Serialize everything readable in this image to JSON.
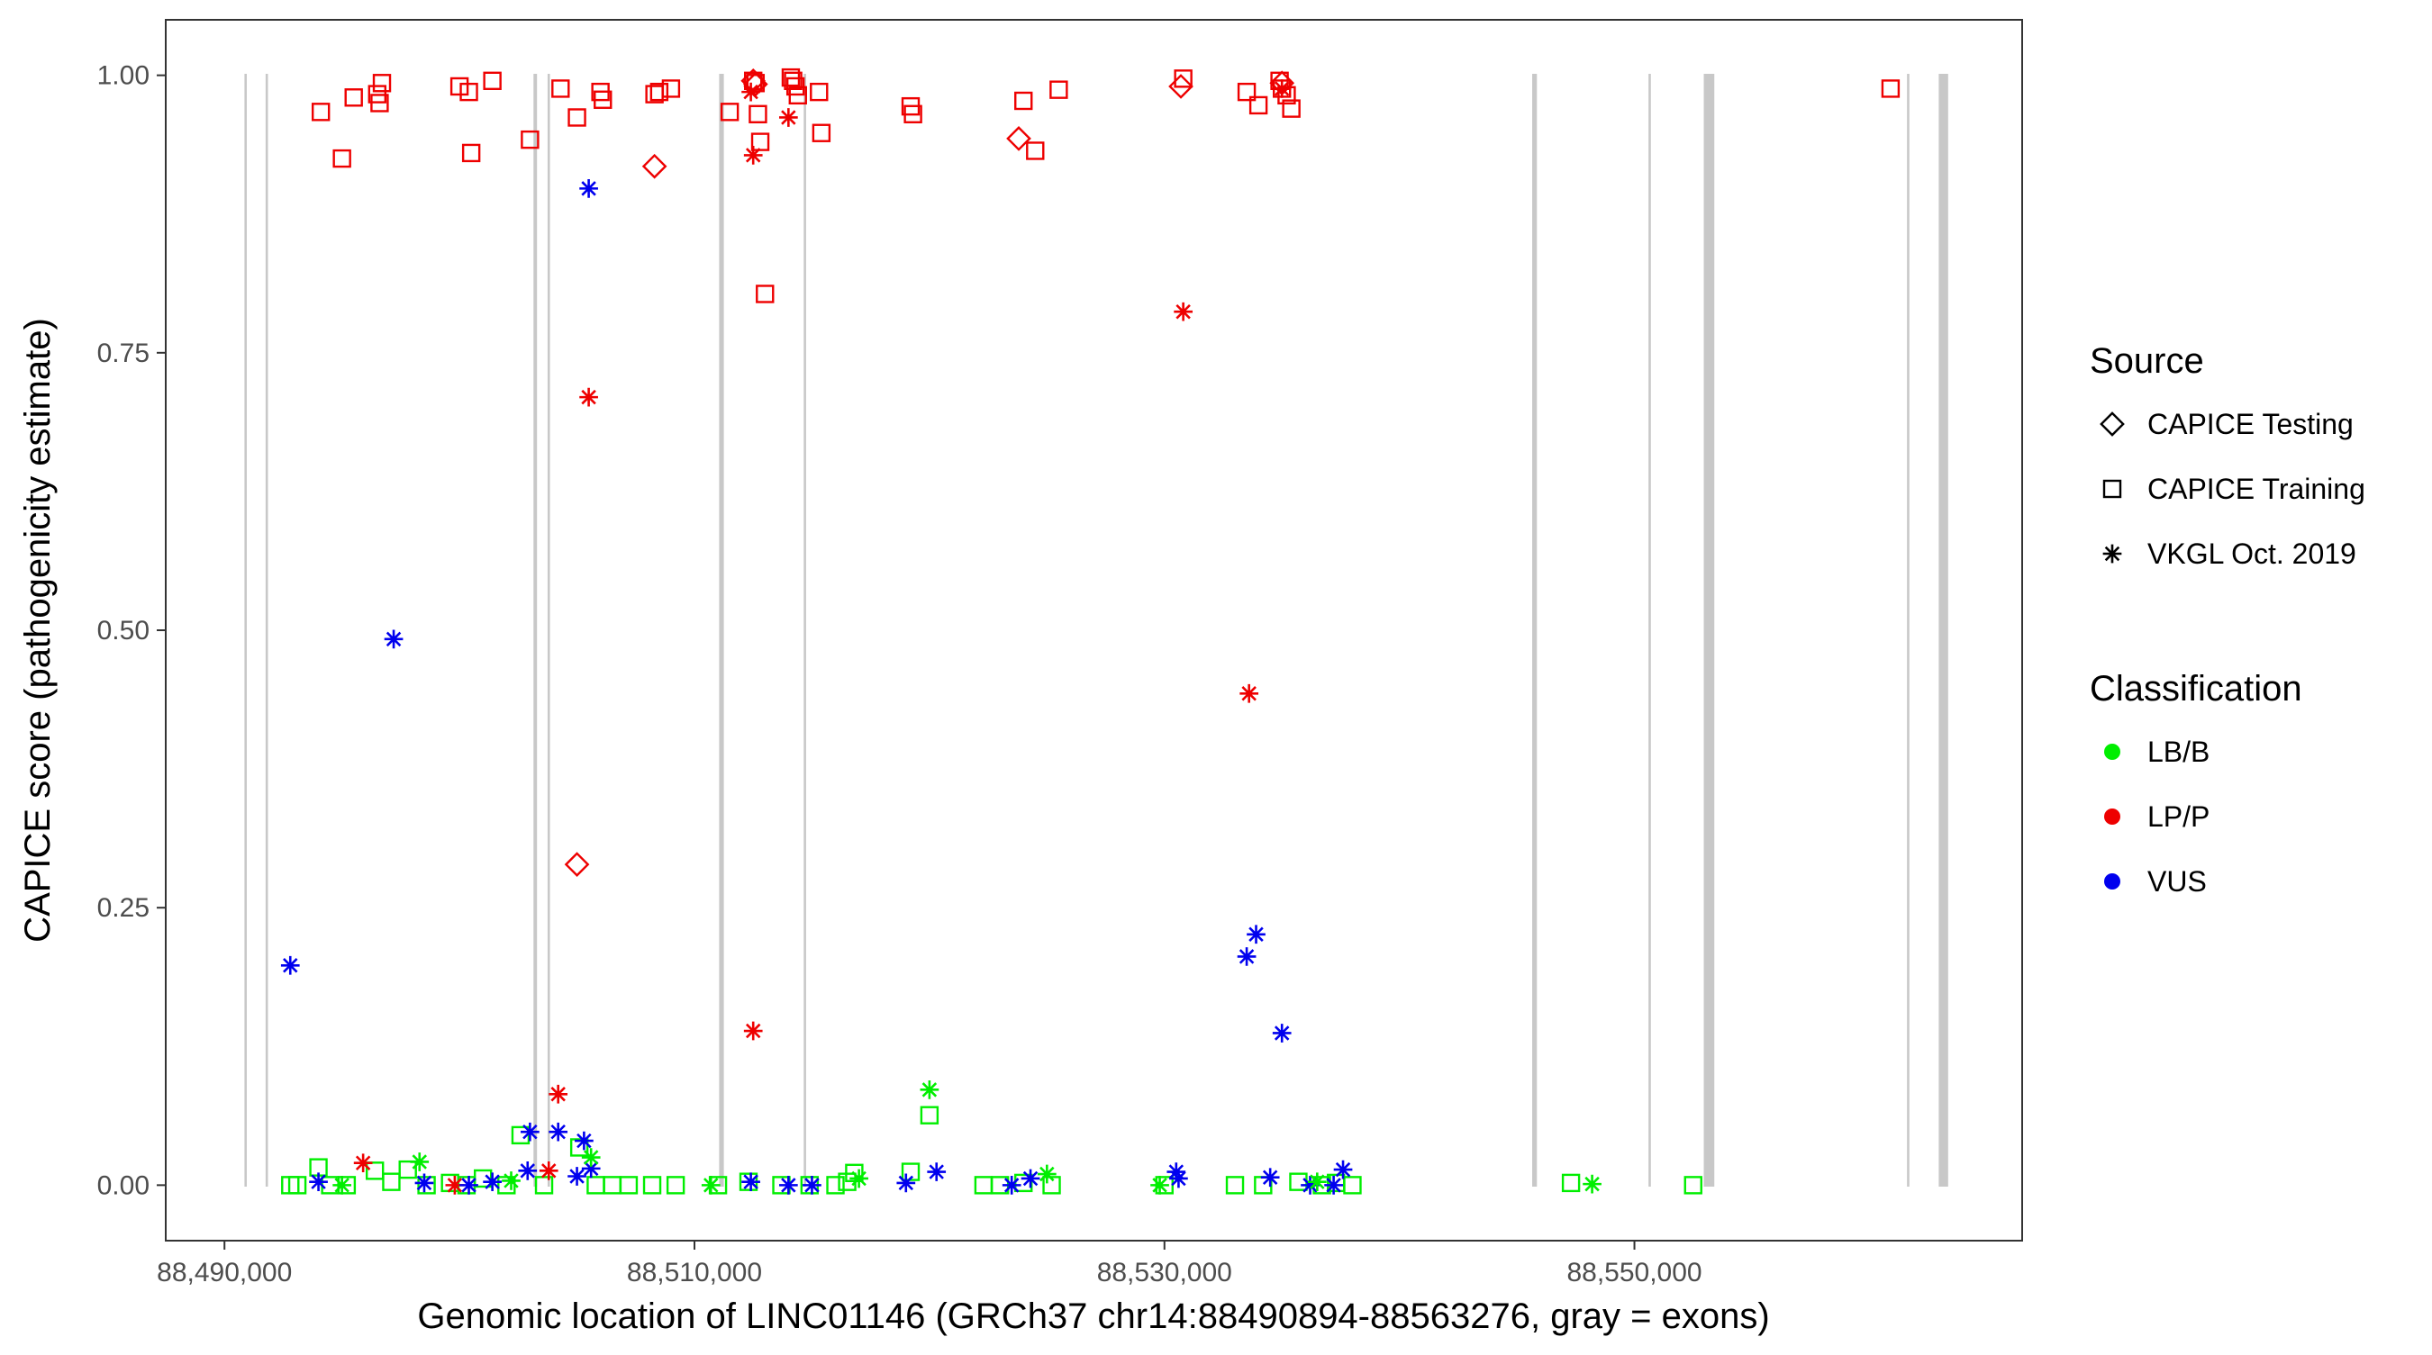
{
  "chart_data": {
    "type": "scatter",
    "xlabel": "Genomic location of LINC01146 (GRCh37 chr14:88490894-88563276, gray = exons)",
    "ylabel": "CAPICE score (pathogenicity estimate)",
    "xlim": [
      88487500,
      88566500
    ],
    "ylim": [
      -0.05,
      1.05
    ],
    "x_ticks": [
      88490000,
      88510000,
      88530000,
      88550000
    ],
    "x_tick_labels": [
      "88,490,000",
      "88,510,000",
      "88,530,000",
      "88,550,000"
    ],
    "y_ticks": [
      0,
      0.25,
      0.5,
      0.75,
      1.0
    ],
    "y_tick_labels": [
      "0.00",
      "0.25",
      "0.50",
      "0.75",
      "1.00"
    ],
    "grid": false,
    "exon_color": "#c8c8c8",
    "exons": [
      {
        "start": 88490850,
        "end": 88490950
      },
      {
        "start": 88491750,
        "end": 88491850
      },
      {
        "start": 88503150,
        "end": 88503300
      },
      {
        "start": 88503750,
        "end": 88503850
      },
      {
        "start": 88511050,
        "end": 88511250
      },
      {
        "start": 88514650,
        "end": 88514750
      },
      {
        "start": 88545650,
        "end": 88545850
      },
      {
        "start": 88550600,
        "end": 88550700
      },
      {
        "start": 88552950,
        "end": 88553400
      },
      {
        "start": 88561600,
        "end": 88561700
      },
      {
        "start": 88562950,
        "end": 88563350
      }
    ],
    "legend": {
      "placement": "right",
      "source_title": "Source",
      "source_entries": [
        {
          "label": "CAPICE Testing",
          "shape": "diamond"
        },
        {
          "label": "CAPICE Training",
          "shape": "square"
        },
        {
          "label": "VKGL Oct. 2019",
          "shape": "asterisk"
        }
      ],
      "class_title": "Classification",
      "class_entries": [
        {
          "label": "LB/B",
          "color": "#00ee00"
        },
        {
          "label": "LP/P",
          "color": "#ee0000"
        },
        {
          "label": "VUS",
          "color": "#0000ee"
        }
      ]
    },
    "series": [
      {
        "source": "CAPICE Training",
        "classification": "LP/P",
        "shape": "square",
        "color": "#ee0000",
        "x": [
          88494100,
          88495000,
          88495500,
          88496500,
          88496600,
          88496700,
          88500000,
          88500400,
          88500500,
          88501400,
          88503000,
          88504300,
          88505000,
          88506000,
          88506100,
          88508300,
          88508500,
          88509000,
          88511500,
          88512500,
          88512600,
          88512700,
          88512800,
          88513000,
          88514100,
          88514200,
          88514300,
          88514400,
          88515300,
          88515400,
          88519200,
          88519300,
          88524000,
          88524500,
          88525500,
          88530800,
          88533500,
          88534000,
          88534900,
          88535000,
          88535200,
          88535400,
          88560900
        ],
        "y": [
          0.967,
          0.925,
          0.98,
          0.983,
          0.975,
          0.993,
          0.99,
          0.985,
          0.93,
          0.995,
          0.942,
          0.988,
          0.962,
          0.985,
          0.978,
          0.983,
          0.985,
          0.988,
          0.967,
          0.995,
          0.993,
          0.965,
          0.94,
          0.803,
          0.998,
          0.995,
          0.99,
          0.982,
          0.985,
          0.948,
          0.972,
          0.965,
          0.977,
          0.932,
          0.987,
          0.997,
          0.985,
          0.973,
          0.995,
          0.988,
          0.982,
          0.97,
          0.988
        ]
      },
      {
        "source": "CAPICE Training",
        "classification": "LB/B",
        "shape": "square",
        "color": "#00ee00",
        "x": [
          88492800,
          88493100,
          88494000,
          88494500,
          88495200,
          88496400,
          88497100,
          88497800,
          88498600,
          88499600,
          88500300,
          88501000,
          88502000,
          88502600,
          88503600,
          88505100,
          88505800,
          88506500,
          88507200,
          88508200,
          88509200,
          88511000,
          88512300,
          88513700,
          88514900,
          88516000,
          88516500,
          88516800,
          88519200,
          88520000,
          88522300,
          88523000,
          88524000,
          88525200,
          88530000,
          88533000,
          88534200,
          88535700,
          88536700,
          88537300,
          88538000,
          88547300,
          88552500
        ],
        "y": [
          0.0,
          0.0,
          0.016,
          0.0,
          0.0,
          0.013,
          0.003,
          0.014,
          0.0,
          0.002,
          0.0,
          0.006,
          0.0,
          0.045,
          0.0,
          0.034,
          0.0,
          0.0,
          0.0,
          0.0,
          0.0,
          0.0,
          0.003,
          0.0,
          0.0,
          0.0,
          0.003,
          0.011,
          0.012,
          0.063,
          0.0,
          0.0,
          0.002,
          0.0,
          0.0,
          0.0,
          0.0,
          0.003,
          0.0,
          0.002,
          0.0,
          0.002,
          0.0
        ]
      },
      {
        "source": "CAPICE Testing",
        "classification": "LP/P",
        "shape": "diamond",
        "color": "#ee0000",
        "x": [
          88508300,
          88512500,
          88512600,
          88523800,
          88530700,
          88535000,
          88505000
        ],
        "y": [
          0.918,
          0.995,
          0.992,
          0.943,
          0.99,
          0.993,
          0.289
        ]
      },
      {
        "source": "VKGL Oct. 2019",
        "classification": "LP/P",
        "color": "#ee0000",
        "shape": "asterisk",
        "x": [
          88512400,
          88512500,
          88514000,
          88505500,
          88530800,
          88533600,
          88512500,
          88504200,
          88495900,
          88499800,
          88503800,
          88535000
        ],
        "y": [
          0.985,
          0.928,
          0.962,
          0.71,
          0.787,
          0.443,
          0.139,
          0.082,
          0.02,
          0.0,
          0.013,
          0.988
        ]
      },
      {
        "source": "VKGL Oct. 2019",
        "classification": "VUS",
        "color": "#0000ee",
        "shape": "asterisk",
        "x": [
          88505500,
          88497200,
          88492800,
          88533500,
          88533900,
          88535000,
          88503000,
          88504200,
          88505300,
          88502900,
          88505600,
          88505000,
          88494000,
          88498500,
          88500400,
          88501400,
          88512400,
          88514000,
          88515000,
          88519000,
          88520300,
          88523500,
          88524300,
          88530500,
          88530600,
          88534500,
          88536200,
          88537200,
          88537600
        ],
        "y": [
          0.898,
          0.492,
          0.198,
          0.206,
          0.226,
          0.137,
          0.048,
          0.048,
          0.04,
          0.013,
          0.015,
          0.008,
          0.003,
          0.002,
          0.0,
          0.003,
          0.003,
          0.0,
          0.0,
          0.002,
          0.012,
          0.0,
          0.006,
          0.012,
          0.006,
          0.007,
          0.0,
          0.0,
          0.014
        ]
      },
      {
        "source": "VKGL Oct. 2019",
        "classification": "LB/B",
        "color": "#00ee00",
        "shape": "asterisk",
        "x": [
          88498300,
          88505600,
          88520000,
          88525000,
          88529800,
          88548200,
          88495000,
          88502200,
          88510700,
          88517000,
          88536500
        ],
        "y": [
          0.021,
          0.025,
          0.086,
          0.01,
          0.0,
          0.001,
          0.0,
          0.004,
          0.0,
          0.006,
          0.003
        ]
      }
    ]
  }
}
